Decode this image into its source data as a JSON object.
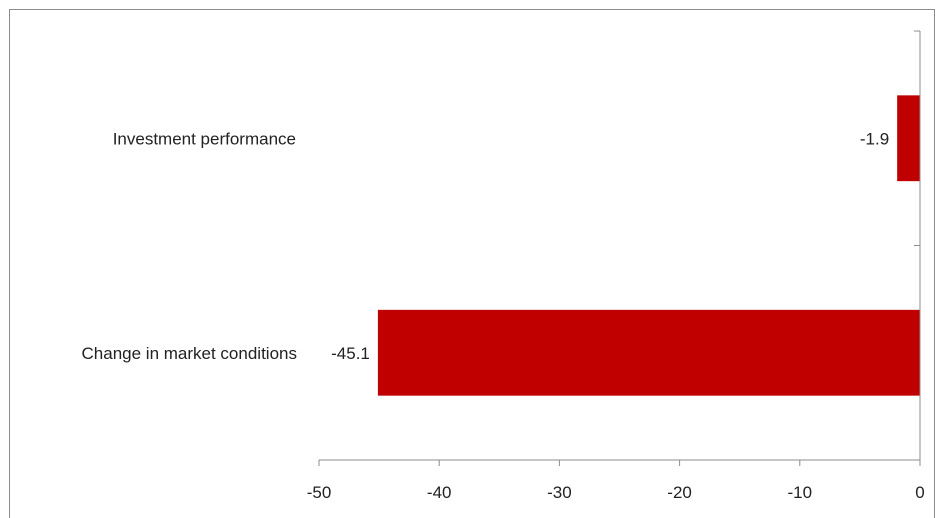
{
  "chart_data": {
    "type": "bar",
    "orientation": "horizontal",
    "title": "",
    "xlabel": "",
    "ylabel": "",
    "categories": [
      "Investment performance",
      "Change in market conditions"
    ],
    "values": [
      -1.9,
      -45.1
    ],
    "data_labels": [
      "-1.9",
      "-45.1"
    ],
    "xlim": [
      -50,
      0
    ],
    "x_ticks": [
      -50,
      -40,
      -30,
      -20,
      -10,
      0
    ],
    "x_tick_labels": [
      "-50",
      "-40",
      "-30",
      "-20",
      "-10",
      "0"
    ],
    "grid": false,
    "legend": "none",
    "bar_color": "#c00000"
  }
}
